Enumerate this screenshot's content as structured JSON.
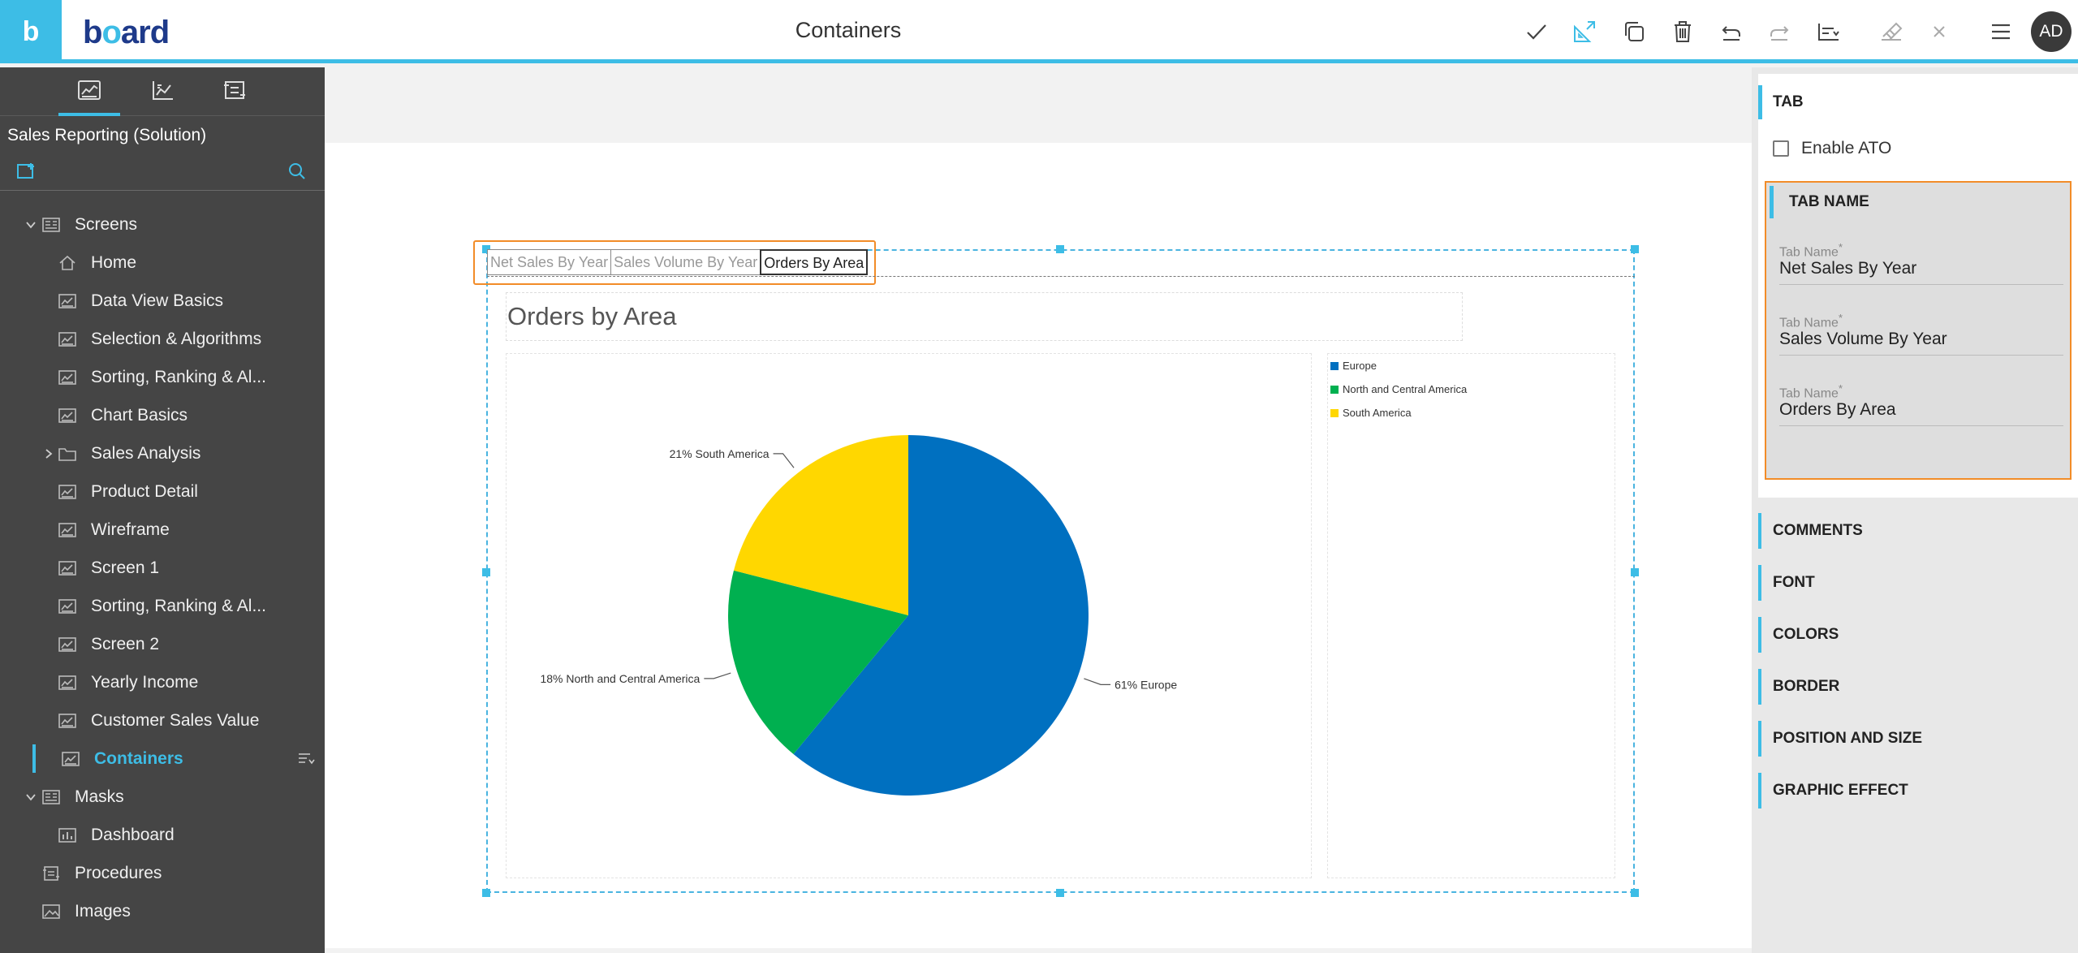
{
  "app": {
    "logo_letter": "b",
    "brand": "board",
    "page_title": "Containers",
    "user_initials": "AD"
  },
  "toolbar_icons": [
    "checkmark-icon",
    "layout-icon",
    "duplicate-icon",
    "trash-icon",
    "undo-icon",
    "redo-icon",
    "align-icon",
    "eraser-icon",
    "close-icon",
    "hamburger-menu-icon"
  ],
  "sidebar": {
    "solution_title": "Sales Reporting (Solution)",
    "tree": [
      {
        "label": "Screens",
        "kind": "group",
        "expanded": true,
        "level": 0
      },
      {
        "label": "Home",
        "kind": "home",
        "level": 1
      },
      {
        "label": "Data View Basics",
        "kind": "screen",
        "level": 1
      },
      {
        "label": "Selection & Algorithms",
        "kind": "screen",
        "level": 1
      },
      {
        "label": "Sorting, Ranking & Al...",
        "kind": "screen",
        "level": 1
      },
      {
        "label": "Chart Basics",
        "kind": "screen",
        "level": 1
      },
      {
        "label": "Sales Analysis",
        "kind": "folder",
        "level": 1
      },
      {
        "label": "Product Detail",
        "kind": "screen",
        "level": 1
      },
      {
        "label": "Wireframe",
        "kind": "screen",
        "level": 1
      },
      {
        "label": "Screen 1",
        "kind": "screen",
        "level": 1
      },
      {
        "label": "Sorting, Ranking & Al...",
        "kind": "screen",
        "level": 1
      },
      {
        "label": "Screen 2",
        "kind": "screen",
        "level": 1
      },
      {
        "label": "Yearly Income",
        "kind": "screen",
        "level": 1
      },
      {
        "label": "Customer Sales Value",
        "kind": "screen",
        "level": 1
      },
      {
        "label": "Containers",
        "kind": "screen",
        "level": 1,
        "selected": true
      },
      {
        "label": "Masks",
        "kind": "group",
        "expanded": true,
        "level": 0
      },
      {
        "label": "Dashboard",
        "kind": "mask",
        "level": 1
      },
      {
        "label": "Procedures",
        "kind": "procedures",
        "level": 0
      },
      {
        "label": "Images",
        "kind": "images",
        "level": 0
      }
    ]
  },
  "container": {
    "tabs": [
      {
        "label": "Net Sales By Year",
        "active": false
      },
      {
        "label": "Sales Volume By Year",
        "active": false
      },
      {
        "label": "Orders By Area",
        "active": true
      }
    ],
    "chart_title": "Orders by Area"
  },
  "chart_data": {
    "type": "pie",
    "title": "Orders by Area",
    "slices": [
      {
        "name": "Europe",
        "value": 61,
        "label": "61% Europe",
        "color": "#0070c0"
      },
      {
        "name": "North and Central America",
        "value": 18,
        "label": "18% North and Central America",
        "color": "#00b050"
      },
      {
        "name": "South America",
        "value": 21,
        "label": "21% South America",
        "color": "#ffd700"
      }
    ],
    "legend": [
      "Europe",
      "North and Central America",
      "South America"
    ],
    "legend_position": "right"
  },
  "props": {
    "tab_section": "TAB",
    "enable_ato_label": "Enable ATO",
    "enable_ato_checked": false,
    "tab_name_section": "TAB NAME",
    "tab_name_label": "Tab Name",
    "tab_names": [
      "Net Sales By Year",
      "Sales Volume By Year",
      "Orders By Area"
    ],
    "collapsed_sections": [
      "COMMENTS",
      "FONT",
      "COLORS",
      "BORDER",
      "POSITION AND SIZE",
      "GRAPHIC EFFECT"
    ]
  }
}
